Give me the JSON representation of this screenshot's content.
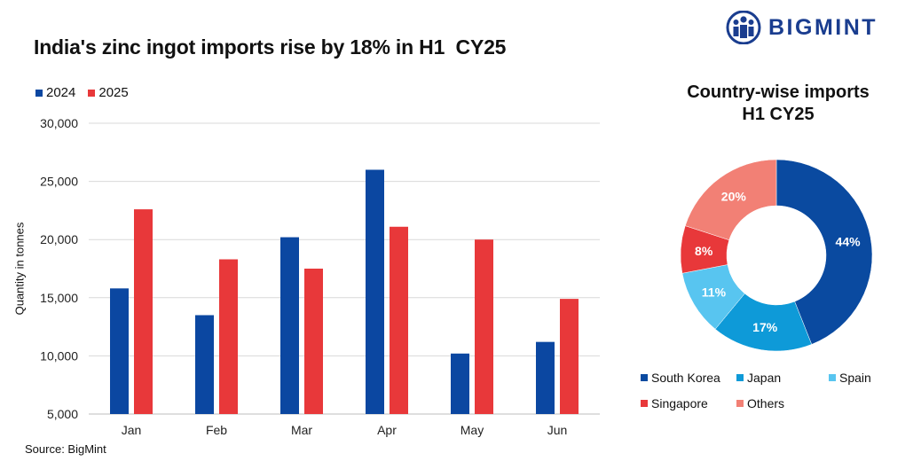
{
  "brand": {
    "name": "BIGMINT",
    "color": "#1a3d8f"
  },
  "source": "Source: BigMint",
  "chart_data": [
    {
      "type": "bar",
      "title": "India's zinc ingot imports rise by 18% in H1  CY25",
      "xlabel": "",
      "ylabel": "Quantity in tonnes",
      "categories": [
        "Jan",
        "Feb",
        "Mar",
        "Apr",
        "May",
        "Jun"
      ],
      "series": [
        {
          "name": "2024",
          "color": "#0b47a1",
          "values": [
            15800,
            13500,
            20200,
            26000,
            10200,
            11200
          ]
        },
        {
          "name": "2025",
          "color": "#e8383a",
          "values": [
            22600,
            18300,
            17500,
            21100,
            20000,
            14900
          ]
        }
      ],
      "ylim": [
        5000,
        30000
      ],
      "yticks": [
        "5,000",
        "10,000",
        "15,000",
        "20,000",
        "25,000",
        "30,000"
      ],
      "grid": true,
      "legend": "top-left"
    },
    {
      "type": "pie",
      "title": "Country-wise imports\nH1 CY25",
      "title_lines": [
        "Country-wise imports",
        "H1 CY25"
      ],
      "donut": true,
      "slices": [
        {
          "label": "South Korea",
          "value": 44,
          "display": "44%",
          "color": "#0a4aa0"
        },
        {
          "label": "Japan",
          "value": 17,
          "display": "17%",
          "color": "#0e9ad8"
        },
        {
          "label": "Spain",
          "value": 11,
          "display": "11%",
          "color": "#58c5f0"
        },
        {
          "label": "Singapore",
          "value": 8,
          "display": "8%",
          "color": "#e8383a"
        },
        {
          "label": "Others",
          "value": 20,
          "display": "20%",
          "color": "#f28075"
        }
      ],
      "legend": "bottom"
    }
  ]
}
